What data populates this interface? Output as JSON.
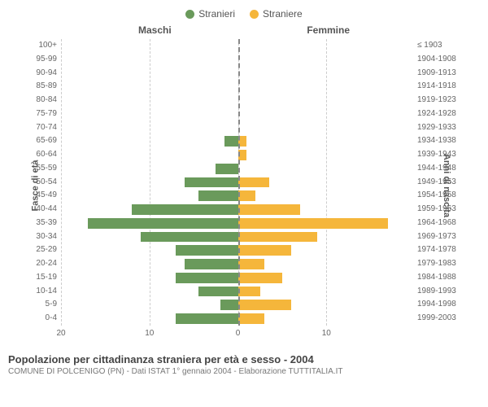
{
  "legend": {
    "male": {
      "label": "Stranieri",
      "color": "#6a9a5b"
    },
    "female": {
      "label": "Straniere",
      "color": "#f5b63b"
    }
  },
  "chart": {
    "type": "population-pyramid",
    "header_male": "Maschi",
    "header_female": "Femmine",
    "axis_left": "Fasce di età",
    "axis_right": "Anni di nascita",
    "xmax": 20,
    "xticks_left": [
      20,
      10,
      0
    ],
    "xticks_right": [
      0,
      10
    ],
    "bar_color_male": "#6a9a5b",
    "bar_color_female": "#f5b63b",
    "grid_color": "#cccccc",
    "center_color": "#888888",
    "background": "#ffffff",
    "rows": [
      {
        "age": "100+",
        "birth": "≤ 1903",
        "m": 0,
        "f": 0
      },
      {
        "age": "95-99",
        "birth": "1904-1908",
        "m": 0,
        "f": 0
      },
      {
        "age": "90-94",
        "birth": "1909-1913",
        "m": 0,
        "f": 0
      },
      {
        "age": "85-89",
        "birth": "1914-1918",
        "m": 0,
        "f": 0
      },
      {
        "age": "80-84",
        "birth": "1919-1923",
        "m": 0,
        "f": 0
      },
      {
        "age": "75-79",
        "birth": "1924-1928",
        "m": 0,
        "f": 0
      },
      {
        "age": "70-74",
        "birth": "1929-1933",
        "m": 0,
        "f": 0
      },
      {
        "age": "65-69",
        "birth": "1934-1938",
        "m": 1.5,
        "f": 1
      },
      {
        "age": "60-64",
        "birth": "1939-1943",
        "m": 0,
        "f": 1
      },
      {
        "age": "55-59",
        "birth": "1944-1948",
        "m": 2.5,
        "f": 0
      },
      {
        "age": "50-54",
        "birth": "1949-1953",
        "m": 6,
        "f": 3.5
      },
      {
        "age": "45-49",
        "birth": "1954-1958",
        "m": 4.5,
        "f": 2
      },
      {
        "age": "40-44",
        "birth": "1959-1963",
        "m": 12,
        "f": 7
      },
      {
        "age": "35-39",
        "birth": "1964-1968",
        "m": 17,
        "f": 17
      },
      {
        "age": "30-34",
        "birth": "1969-1973",
        "m": 11,
        "f": 9
      },
      {
        "age": "25-29",
        "birth": "1974-1978",
        "m": 7,
        "f": 6
      },
      {
        "age": "20-24",
        "birth": "1979-1983",
        "m": 6,
        "f": 3
      },
      {
        "age": "15-19",
        "birth": "1984-1988",
        "m": 7,
        "f": 5
      },
      {
        "age": "10-14",
        "birth": "1989-1993",
        "m": 4.5,
        "f": 2.5
      },
      {
        "age": "5-9",
        "birth": "1994-1998",
        "m": 2,
        "f": 6
      },
      {
        "age": "0-4",
        "birth": "1999-2003",
        "m": 7,
        "f": 3
      }
    ]
  },
  "footer": {
    "title": "Popolazione per cittadinanza straniera per età e sesso - 2004",
    "subtitle": "COMUNE DI POLCENIGO (PN) - Dati ISTAT 1° gennaio 2004 - Elaborazione TUTTITALIA.IT"
  }
}
